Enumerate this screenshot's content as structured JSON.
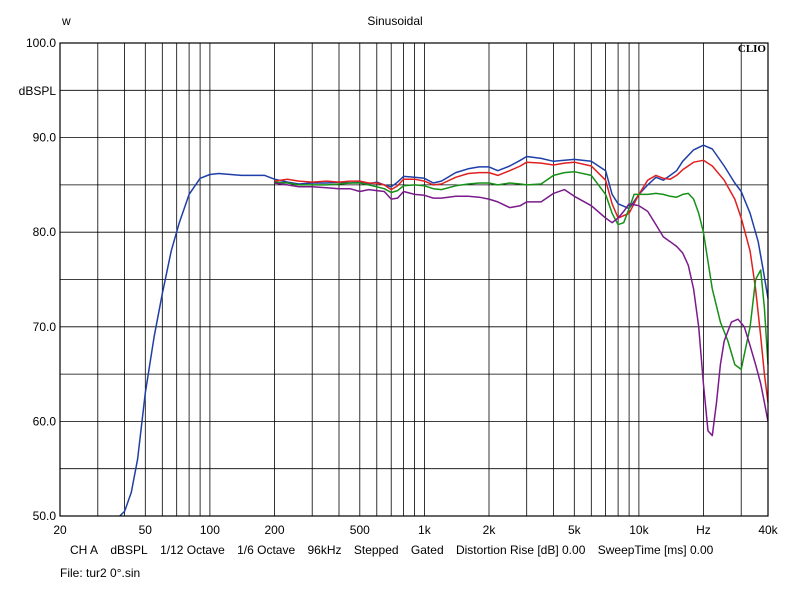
{
  "chart_data": {
    "type": "line",
    "title": "Sinusoidal",
    "top_left_label": "w",
    "brand": "CLIO",
    "ylabel": "dBSPL",
    "xlabel_unit": "Hz",
    "xscale": "log",
    "xlim": [
      20,
      40000
    ],
    "ylim": [
      50,
      100
    ],
    "grid": true,
    "y_ticks": [
      {
        "value": 50,
        "label": "50.0"
      },
      {
        "value": 60,
        "label": "60.0"
      },
      {
        "value": 70,
        "label": "70.0"
      },
      {
        "value": 80,
        "label": "80.0"
      },
      {
        "value": 90,
        "label": "90.0"
      },
      {
        "value": 100,
        "label": "100.0"
      }
    ],
    "x_ticks": [
      {
        "value": 20,
        "label": "20"
      },
      {
        "value": 50,
        "label": "50"
      },
      {
        "value": 100,
        "label": "100"
      },
      {
        "value": 200,
        "label": "200"
      },
      {
        "value": 500,
        "label": "500"
      },
      {
        "value": 1000,
        "label": "1k"
      },
      {
        "value": 2000,
        "label": "2k"
      },
      {
        "value": 5000,
        "label": "5k"
      },
      {
        "value": 10000,
        "label": "10k"
      },
      {
        "value": 20000,
        "label": "Hz"
      },
      {
        "value": 40000,
        "label": "40k"
      }
    ],
    "series": [
      {
        "color": "#1f3fa8",
        "points": [
          [
            38,
            50
          ],
          [
            40,
            50.5
          ],
          [
            43,
            52.5
          ],
          [
            46,
            56
          ],
          [
            50,
            63
          ],
          [
            55,
            69
          ],
          [
            60,
            73.5
          ],
          [
            66,
            78
          ],
          [
            72,
            81
          ],
          [
            80,
            84
          ],
          [
            90,
            85.7
          ],
          [
            100,
            86.1
          ],
          [
            110,
            86.2
          ],
          [
            125,
            86.1
          ],
          [
            140,
            86
          ],
          [
            160,
            86
          ],
          [
            180,
            86
          ],
          [
            200,
            85.6
          ],
          [
            230,
            85.3
          ],
          [
            260,
            85.1
          ],
          [
            300,
            85.2
          ],
          [
            350,
            85.2
          ],
          [
            400,
            85.3
          ],
          [
            450,
            85.2
          ],
          [
            500,
            85.3
          ],
          [
            550,
            85.1
          ],
          [
            600,
            85.3
          ],
          [
            650,
            85
          ],
          [
            700,
            84.8
          ],
          [
            750,
            85.3
          ],
          [
            800,
            85.9
          ],
          [
            900,
            85.8
          ],
          [
            1000,
            85.7
          ],
          [
            1100,
            85.2
          ],
          [
            1200,
            85.4
          ],
          [
            1400,
            86.3
          ],
          [
            1600,
            86.7
          ],
          [
            1800,
            86.9
          ],
          [
            2000,
            86.9
          ],
          [
            2200,
            86.5
          ],
          [
            2500,
            87
          ],
          [
            2800,
            87.6
          ],
          [
            3000,
            88
          ],
          [
            3500,
            87.8
          ],
          [
            4000,
            87.5
          ],
          [
            4500,
            87.6
          ],
          [
            5000,
            87.7
          ],
          [
            6000,
            87.5
          ],
          [
            7000,
            86.5
          ],
          [
            7500,
            84
          ],
          [
            8000,
            83
          ],
          [
            9000,
            82.5
          ],
          [
            10000,
            84
          ],
          [
            11000,
            85
          ],
          [
            12000,
            85.8
          ],
          [
            13000,
            85.5
          ],
          [
            14000,
            86
          ],
          [
            15000,
            86.5
          ],
          [
            16000,
            87.5
          ],
          [
            18000,
            88.7
          ],
          [
            20000,
            89.2
          ],
          [
            22000,
            88.8
          ],
          [
            25000,
            87
          ],
          [
            28000,
            85.2
          ],
          [
            30000,
            84.3
          ],
          [
            33000,
            82
          ],
          [
            36000,
            79
          ],
          [
            38000,
            76
          ],
          [
            40000,
            73
          ]
        ]
      },
      {
        "color": "#e02020",
        "points": [
          [
            200,
            85.4
          ],
          [
            230,
            85.6
          ],
          [
            260,
            85.4
          ],
          [
            300,
            85.3
          ],
          [
            350,
            85.4
          ],
          [
            400,
            85.3
          ],
          [
            450,
            85.4
          ],
          [
            500,
            85.4
          ],
          [
            550,
            85.2
          ],
          [
            600,
            85.2
          ],
          [
            650,
            85
          ],
          [
            700,
            84.5
          ],
          [
            750,
            84.9
          ],
          [
            800,
            85.6
          ],
          [
            900,
            85.6
          ],
          [
            1000,
            85.4
          ],
          [
            1100,
            85
          ],
          [
            1200,
            85.1
          ],
          [
            1400,
            85.8
          ],
          [
            1600,
            86.2
          ],
          [
            1800,
            86.3
          ],
          [
            2000,
            86.3
          ],
          [
            2200,
            86
          ],
          [
            2500,
            86.5
          ],
          [
            2800,
            87
          ],
          [
            3000,
            87.4
          ],
          [
            3500,
            87.3
          ],
          [
            4000,
            87.1
          ],
          [
            4500,
            87.3
          ],
          [
            5000,
            87.4
          ],
          [
            6000,
            87
          ],
          [
            7000,
            85.5
          ],
          [
            7500,
            83
          ],
          [
            8000,
            81.5
          ],
          [
            9000,
            82
          ],
          [
            10000,
            84
          ],
          [
            11000,
            85.5
          ],
          [
            12000,
            86
          ],
          [
            13000,
            85.7
          ],
          [
            14000,
            85.6
          ],
          [
            15000,
            86
          ],
          [
            16000,
            86.6
          ],
          [
            18000,
            87.4
          ],
          [
            20000,
            87.6
          ],
          [
            22000,
            87
          ],
          [
            25000,
            85.5
          ],
          [
            28000,
            83.5
          ],
          [
            30000,
            81.5
          ],
          [
            33000,
            78
          ],
          [
            35000,
            74
          ],
          [
            37000,
            69
          ],
          [
            38500,
            65
          ],
          [
            40000,
            62
          ]
        ]
      },
      {
        "color": "#169016",
        "points": [
          [
            200,
            85.3
          ],
          [
            230,
            85.2
          ],
          [
            260,
            85
          ],
          [
            300,
            85
          ],
          [
            350,
            85
          ],
          [
            400,
            85.1
          ],
          [
            450,
            85.2
          ],
          [
            500,
            85.2
          ],
          [
            550,
            85
          ],
          [
            600,
            84.8
          ],
          [
            650,
            84.6
          ],
          [
            700,
            84.2
          ],
          [
            750,
            84.4
          ],
          [
            800,
            84.9
          ],
          [
            900,
            85
          ],
          [
            1000,
            84.9
          ],
          [
            1100,
            84.6
          ],
          [
            1200,
            84.5
          ],
          [
            1400,
            84.9
          ],
          [
            1600,
            85.1
          ],
          [
            1800,
            85.2
          ],
          [
            2000,
            85.2
          ],
          [
            2200,
            85
          ],
          [
            2500,
            85.2
          ],
          [
            2800,
            85.1
          ],
          [
            3000,
            85
          ],
          [
            3500,
            85.1
          ],
          [
            4000,
            86
          ],
          [
            4500,
            86.3
          ],
          [
            5000,
            86.4
          ],
          [
            6000,
            86
          ],
          [
            7000,
            84
          ],
          [
            7500,
            82
          ],
          [
            8000,
            80.8
          ],
          [
            8500,
            81
          ],
          [
            9000,
            82.5
          ],
          [
            9500,
            84
          ],
          [
            10000,
            84
          ],
          [
            11000,
            84
          ],
          [
            12000,
            84.1
          ],
          [
            13000,
            84
          ],
          [
            14000,
            83.8
          ],
          [
            15000,
            83.7
          ],
          [
            16000,
            84
          ],
          [
            17000,
            84.1
          ],
          [
            18000,
            83.5
          ],
          [
            19000,
            82
          ],
          [
            20000,
            80
          ],
          [
            22000,
            74
          ],
          [
            24000,
            70.5
          ],
          [
            26000,
            68.5
          ],
          [
            28000,
            66
          ],
          [
            30000,
            65.5
          ],
          [
            33000,
            70
          ],
          [
            35000,
            75
          ],
          [
            37000,
            76
          ],
          [
            38500,
            72
          ],
          [
            40000,
            66
          ]
        ]
      },
      {
        "color": "#7a1a8c",
        "points": [
          [
            200,
            85.2
          ],
          [
            230,
            85
          ],
          [
            260,
            84.8
          ],
          [
            300,
            84.8
          ],
          [
            350,
            84.7
          ],
          [
            400,
            84.6
          ],
          [
            450,
            84.6
          ],
          [
            500,
            84.3
          ],
          [
            550,
            84.5
          ],
          [
            600,
            84.4
          ],
          [
            650,
            84.3
          ],
          [
            700,
            83.5
          ],
          [
            750,
            83.6
          ],
          [
            800,
            84.3
          ],
          [
            900,
            84
          ],
          [
            1000,
            83.9
          ],
          [
            1100,
            83.6
          ],
          [
            1200,
            83.6
          ],
          [
            1400,
            83.8
          ],
          [
            1600,
            83.8
          ],
          [
            1800,
            83.7
          ],
          [
            2000,
            83.5
          ],
          [
            2200,
            83.2
          ],
          [
            2500,
            82.6
          ],
          [
            2800,
            82.8
          ],
          [
            3000,
            83.2
          ],
          [
            3500,
            83.2
          ],
          [
            4000,
            84.1
          ],
          [
            4500,
            84.5
          ],
          [
            5000,
            83.8
          ],
          [
            6000,
            82.8
          ],
          [
            7000,
            81.5
          ],
          [
            7500,
            81
          ],
          [
            8000,
            81.5
          ],
          [
            8500,
            82.2
          ],
          [
            9000,
            83
          ],
          [
            10000,
            82.8
          ],
          [
            11000,
            82.2
          ],
          [
            12000,
            80.8
          ],
          [
            13000,
            79.5
          ],
          [
            14000,
            79
          ],
          [
            15000,
            78.5
          ],
          [
            16000,
            77.8
          ],
          [
            17000,
            76.5
          ],
          [
            18000,
            74
          ],
          [
            19000,
            70
          ],
          [
            20000,
            64
          ],
          [
            21000,
            59
          ],
          [
            22000,
            58.5
          ],
          [
            23000,
            62
          ],
          [
            24000,
            66
          ],
          [
            25000,
            68.5
          ],
          [
            27000,
            70.5
          ],
          [
            29000,
            70.8
          ],
          [
            31000,
            70
          ],
          [
            33000,
            68
          ],
          [
            35000,
            66
          ],
          [
            37000,
            64
          ],
          [
            38500,
            62
          ],
          [
            40000,
            60
          ]
        ]
      }
    ]
  },
  "footer": {
    "channel": "CH A",
    "units": "dBSPL",
    "smoothing": "1/12 Octave",
    "resolution": "1/6 Octave",
    "sample_rate": "96kHz",
    "mode": "Stepped",
    "gating": "Gated",
    "distortion_rise": "Distortion Rise [dB] 0.00",
    "sweep_time": "SweepTime [ms] 0.00"
  },
  "file_label": "File: tur2 0°.sin"
}
